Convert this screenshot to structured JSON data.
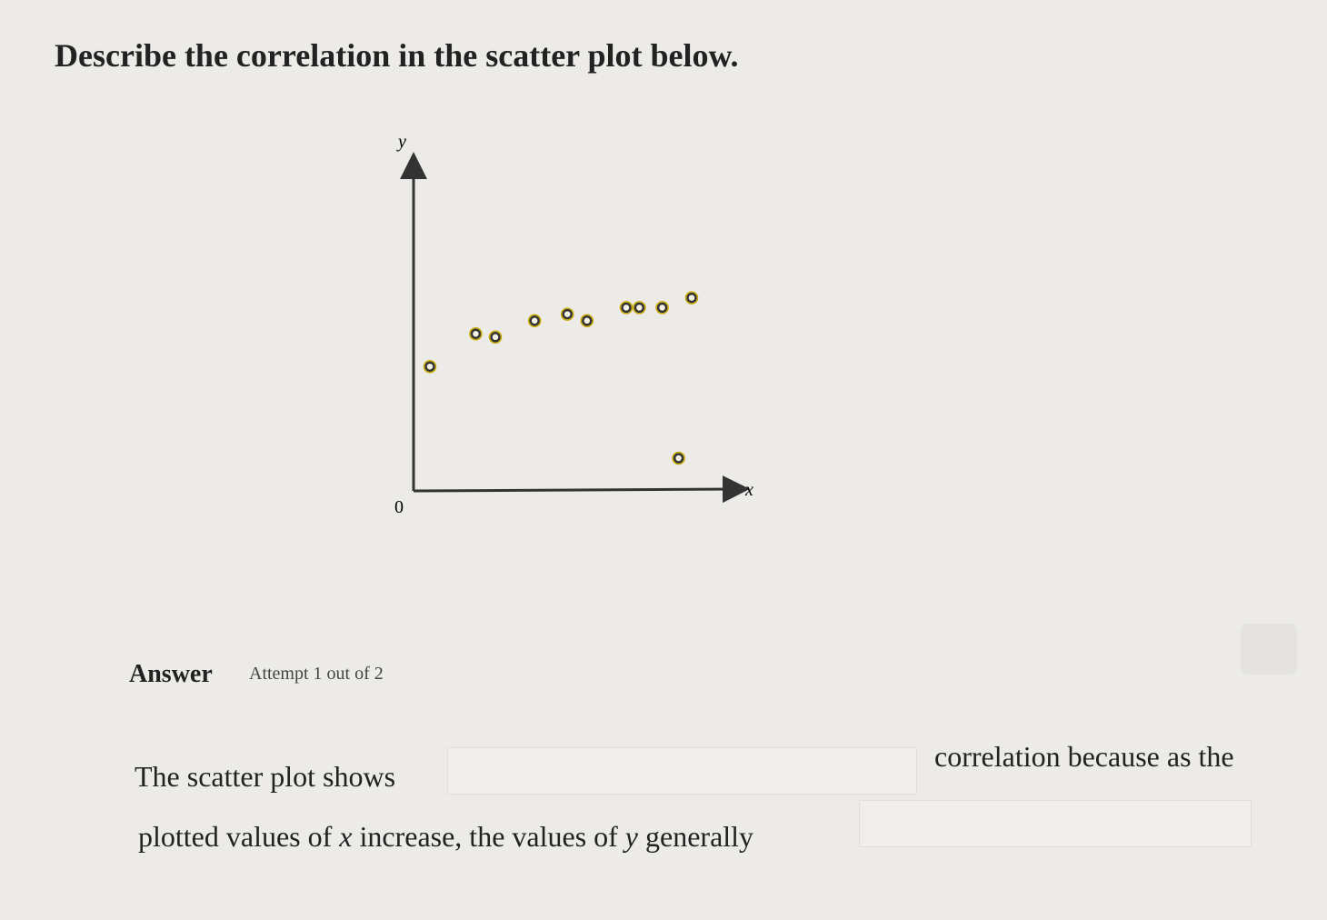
{
  "question": "Describe the correlation in the scatter plot below.",
  "chart_data": {
    "type": "scatter",
    "x_label": "x",
    "y_label": "y",
    "x": [
      0.5,
      1.9,
      2.5,
      3.7,
      4.7,
      5.3,
      6.5,
      6.9,
      7.6,
      8.5,
      8.1
    ],
    "y": [
      3.8,
      4.8,
      4.7,
      5.2,
      5.4,
      5.2,
      5.6,
      5.6,
      5.6,
      5.9,
      1.0
    ],
    "color": "#c8a800",
    "xlim": [
      0,
      10
    ],
    "ylim": [
      0,
      10
    ],
    "xticks": [
      0
    ]
  },
  "answer": {
    "heading": "Answer",
    "attempt": "Attempt 1 out of 2",
    "sentence_start": "The scatter plot shows",
    "sentence_middle": "correlation because as the",
    "sentence_end": [
      "plotted values of ",
      "x",
      " increase, the values of ",
      "y",
      " generally"
    ]
  }
}
